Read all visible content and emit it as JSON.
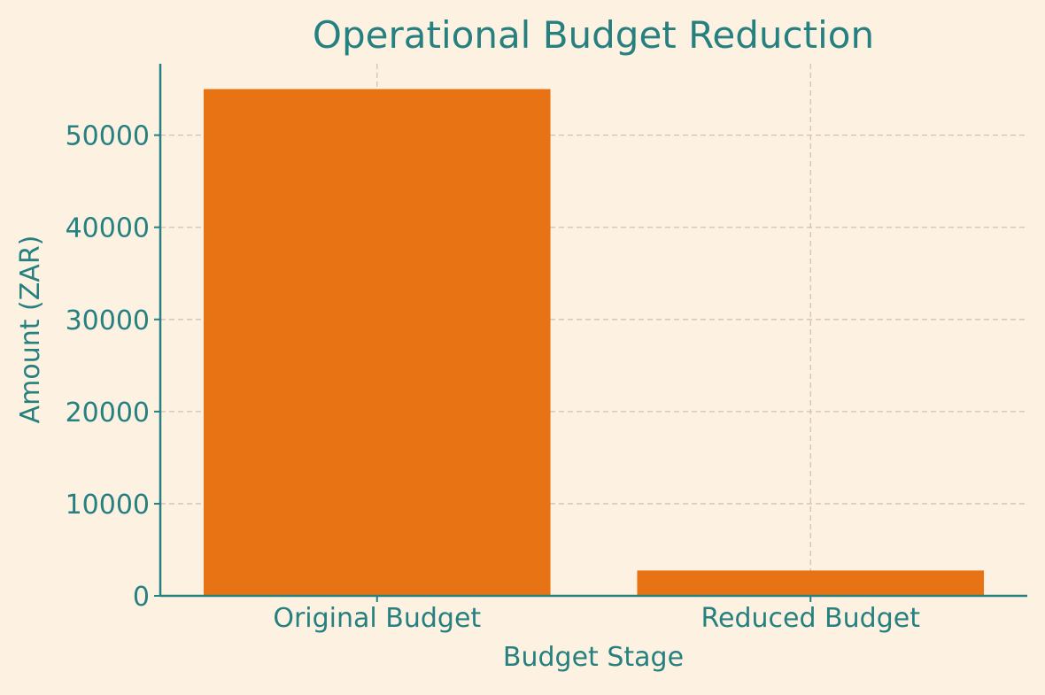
{
  "colors": {
    "background": "#fdf2e2",
    "bar": "#e87314",
    "text": "#25807f",
    "axis": "#25807f",
    "grid": "#d6bfb0"
  },
  "chart_data": {
    "type": "bar",
    "title": "Operational Budget Reduction",
    "xlabel": "Budget Stage",
    "ylabel": "Amount (ZAR)",
    "categories": [
      "Original Budget",
      "Reduced Budget"
    ],
    "values": [
      55000,
      2750
    ],
    "ylim": [
      0,
      57750
    ],
    "yticks": [
      0,
      10000,
      20000,
      30000,
      40000,
      50000
    ],
    "grid": true,
    "legend": "none"
  }
}
